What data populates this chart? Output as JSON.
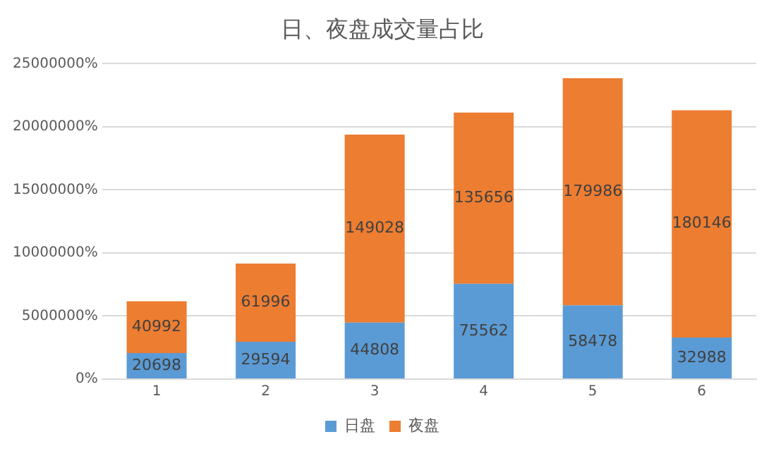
{
  "chart_data": {
    "type": "bar",
    "title": "日、夜盘成交量占比",
    "categories": [
      "1",
      "2",
      "3",
      "4",
      "5",
      "6"
    ],
    "stacked": true,
    "series": [
      {
        "name": "日盘",
        "color": "#5b9bd5",
        "values": [
          20698,
          29594,
          44808,
          75562,
          58478,
          32988
        ]
      },
      {
        "name": "夜盘",
        "color": "#ed7d31",
        "values": [
          40992,
          61996,
          149028,
          135656,
          179986,
          180146
        ]
      }
    ],
    "ylim": [
      0,
      250000
    ],
    "yticks": [
      {
        "value": 0,
        "label": "0%"
      },
      {
        "value": 50000,
        "label": "5000000%"
      },
      {
        "value": 100000,
        "label": "10000000%"
      },
      {
        "value": 150000,
        "label": "15000000%"
      },
      {
        "value": 200000,
        "label": "20000000%"
      },
      {
        "value": 250000,
        "label": "25000000%"
      }
    ],
    "grid": "y",
    "legend": "bottom",
    "data_labels": true
  }
}
